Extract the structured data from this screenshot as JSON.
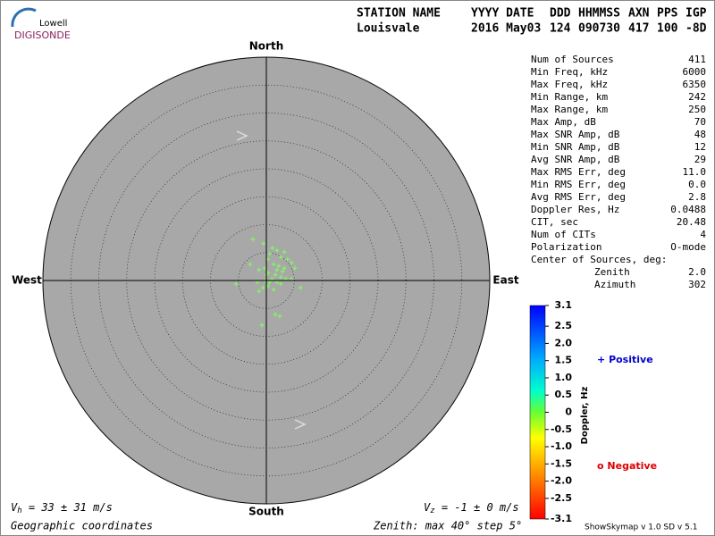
{
  "logo": {
    "top": "Lowell",
    "bottom": "DIGISONDE"
  },
  "header": {
    "columns": [
      {
        "name": "STATION NAME",
        "value": "Louisvale"
      },
      {
        "name": "YYYY DATE",
        "value": "2016 May03"
      },
      {
        "name": "DDD",
        "value": "124"
      },
      {
        "name": "HHMMSS",
        "value": "090730"
      },
      {
        "name": "AXN",
        "value": "417"
      },
      {
        "name": "PPS",
        "value": "100"
      },
      {
        "name": "IGP",
        "value": "-8D"
      }
    ]
  },
  "directions": {
    "north": "North",
    "south": "South",
    "east": "East",
    "west": "West"
  },
  "skymap": {
    "lim": 40,
    "rings": [
      5,
      10,
      15,
      20,
      25,
      30,
      35,
      40
    ],
    "color": "#80ff5c",
    "sources": {
      "x": [
        -2.4,
        -0.5,
        1.1,
        1.9,
        3.2,
        2.6,
        3.8,
        4.5,
        0.3,
        1.3,
        2.2,
        3.2,
        -0.3,
        -1.3,
        0.3,
        1.6,
        2.6,
        3.5,
        1.0,
        -0.3,
        -1.6,
        1.9,
        0.3,
        -0.6,
        1.3,
        2.6,
        4.5,
        6.1,
        -5.4,
        -2.9,
        -1.3,
        1.6,
        2.4,
        -0.8,
        5.1,
        0.6,
        2.9,
        0,
        0.6,
        1.9
      ],
      "y": [
        7.4,
        6.6,
        5.8,
        5.4,
        5.1,
        4.2,
        3.8,
        3.2,
        3.8,
        2.9,
        2.6,
        2.2,
        2.2,
        1.9,
        1.4,
        1.0,
        0.6,
        0.3,
        0.3,
        0,
        -0.3,
        -0.3,
        -1.0,
        -1.3,
        -1.6,
        -0.6,
        0.3,
        -1.3,
        -0.6,
        2.9,
        -1.9,
        -6.1,
        -6.4,
        -8.0,
        2.2,
        4.8,
        1.6,
        1.0,
        -0.3,
        1.9
      ]
    }
  },
  "stats": {
    "rows": [
      [
        "Num of Sources",
        "411"
      ],
      [
        "Min Freq, kHz",
        "6000"
      ],
      [
        "Max Freq, kHz",
        "6350"
      ],
      [
        "Min Range, km",
        "242"
      ],
      [
        "Max Range, km",
        "250"
      ],
      [
        "Max Amp, dB",
        "70"
      ],
      [
        "Max SNR Amp, dB",
        "48"
      ],
      [
        "Min SNR Amp, dB",
        "12"
      ],
      [
        "Avg SNR Amp, dB",
        "29"
      ],
      [
        "Max RMS Err, deg",
        "11.0"
      ],
      [
        "Min RMS Err, deg",
        "0.0"
      ],
      [
        "Avg RMS Err, deg",
        "2.8"
      ],
      [
        "Doppler Res, Hz",
        "0.0488"
      ],
      [
        "CIT, sec",
        "20.48"
      ],
      [
        "Num of CITs",
        "4"
      ],
      [
        "Polarization",
        "O-mode"
      ]
    ],
    "center_title": "Center of Sources, deg:",
    "center_rows": [
      [
        "Zenith",
        "2.0"
      ],
      [
        "Azimuth",
        "302"
      ]
    ]
  },
  "colorbar": {
    "title": "Doppler, Hz",
    "lim": [
      -3.1,
      3.1
    ],
    "ticks": [
      3.1,
      2.5,
      {
        "value": 2,
        "label": "2.0"
      },
      1.5,
      {
        "value": 1,
        "label": "1.0"
      },
      0.5,
      0,
      -0.5,
      {
        "value": -1,
        "label": "-1.0"
      },
      -1.5,
      {
        "value": -2,
        "label": "-2.0"
      },
      -2.5,
      -3.1
    ]
  },
  "legend": [
    {
      "symbol": "+",
      "label": "Positive",
      "color": "#0000cc"
    },
    {
      "symbol": "o",
      "label": "Negative",
      "color": "#dd0000"
    }
  ],
  "footer": {
    "vh": {
      "symbol": "V",
      "sub": "h",
      "text": " = 33 ± 31 m/s"
    },
    "vz": {
      "symbol": "V",
      "sub": "z",
      "text": " = -1 ± 0 m/s"
    },
    "coordinates": "Geographic coordinates",
    "zenith": "Zenith: max 40°  step 5°",
    "version": "ShowSkymap v 1.0  SD v 5.1"
  }
}
